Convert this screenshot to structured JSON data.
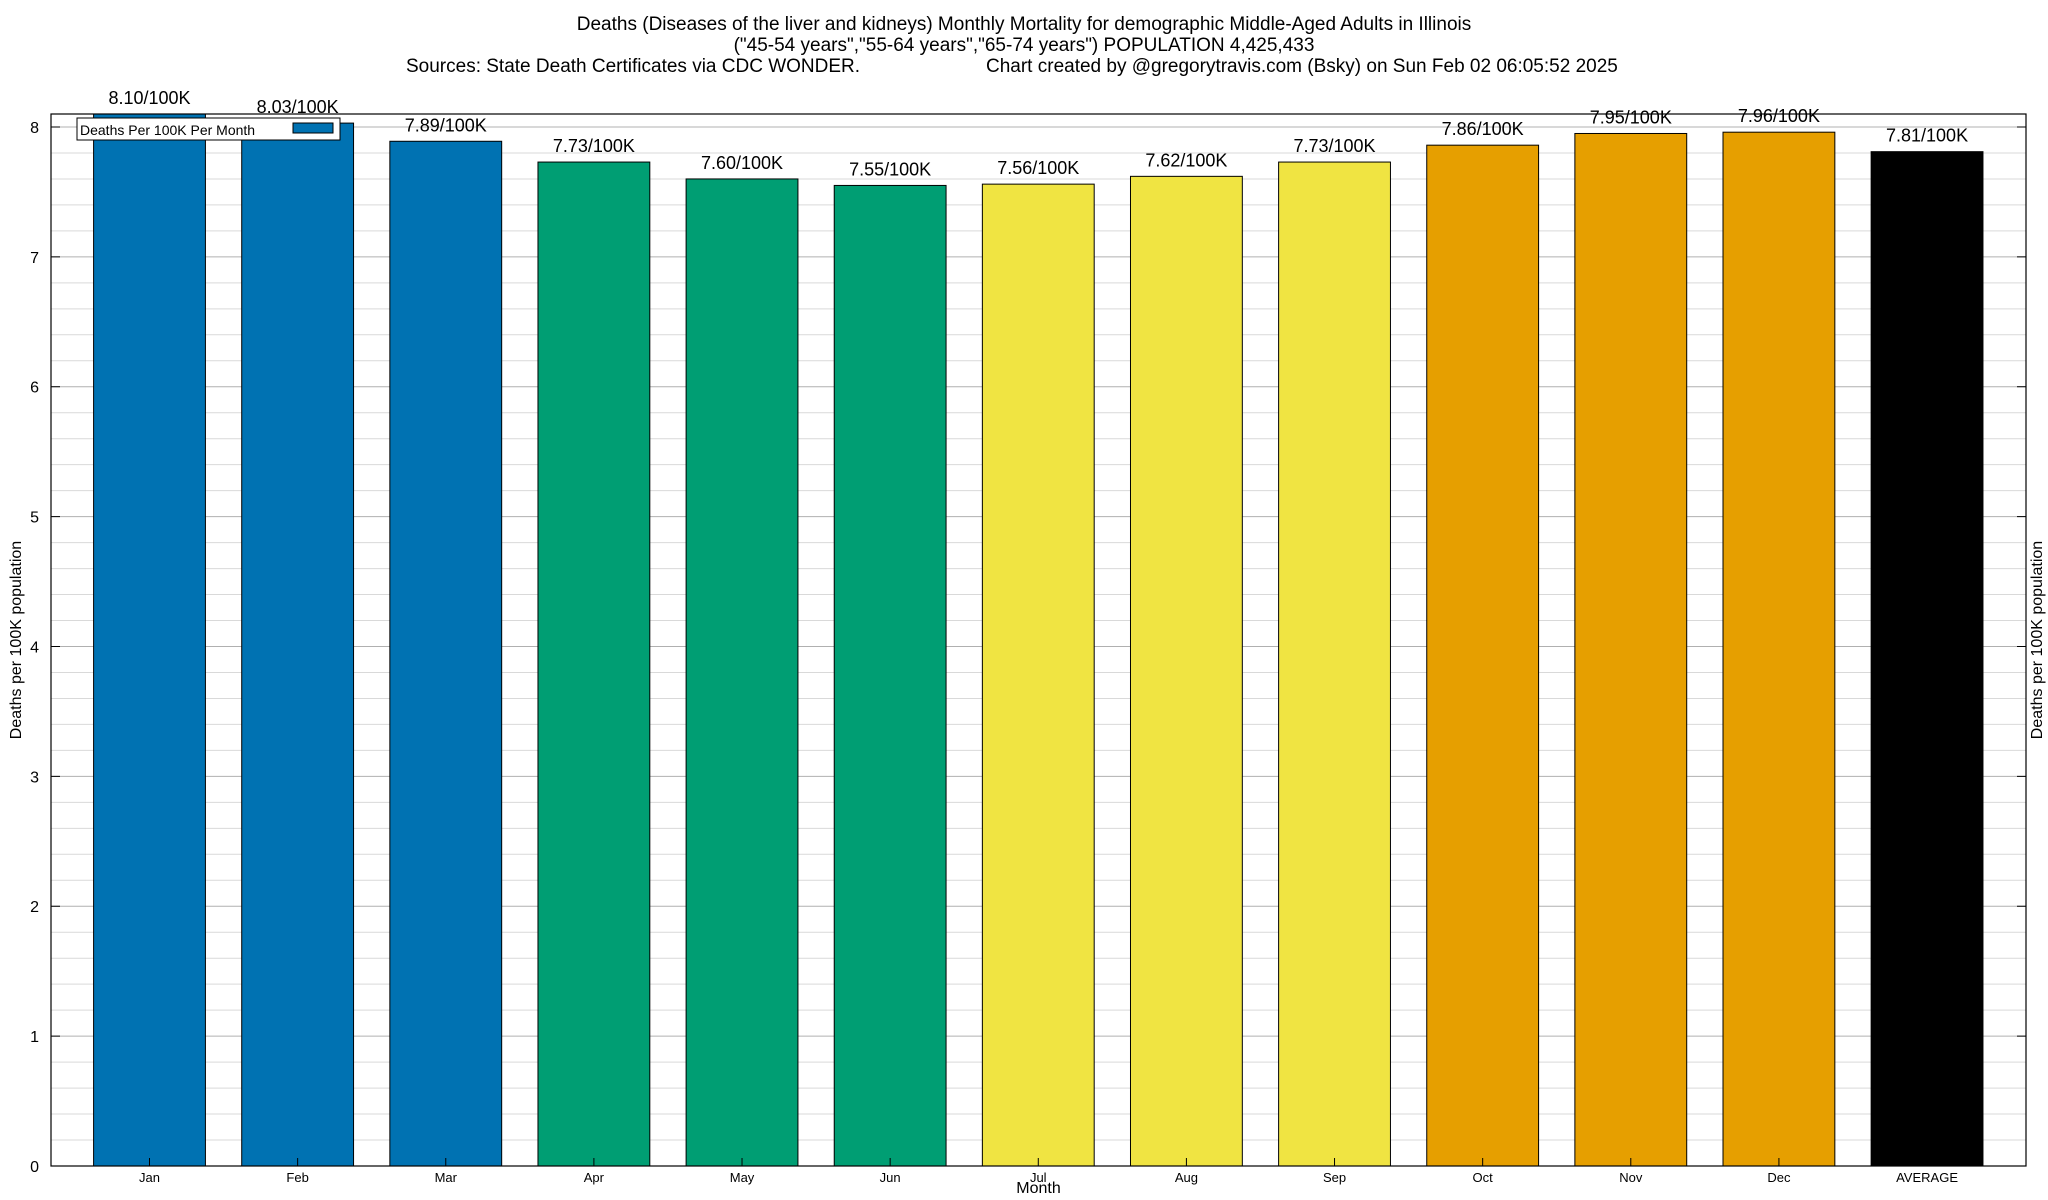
{
  "chart_data": {
    "type": "bar",
    "title": "Deaths (Diseases of the liver and kidneys) Monthly Mortality for demographic Middle-Aged Adults in Illinois",
    "subtitle": "(\"45-54 years\",\"55-64 years\",\"65-74 years\") POPULATION 4,425,433",
    "sources": "Sources: State Death Certificates via CDC WONDER.",
    "credit": "Chart created by @gregorytravis.com (Bsky) on Sun Feb 02 06:05:52 2025",
    "xlabel": "Month",
    "ylabel": "Deaths per 100K population",
    "ylabel_right": "Deaths per 100K population",
    "ylim": [
      0,
      8.1
    ],
    "yticks": [
      "0",
      "1",
      "2",
      "3",
      "4",
      "5",
      "6",
      "7",
      "8"
    ],
    "grid": true,
    "legend": {
      "label": "Deaths Per 100K Per Month",
      "position": "top-left",
      "color": "#0072b2"
    },
    "categories": [
      "Jan",
      "Feb",
      "Mar",
      "Apr",
      "May",
      "Jun",
      "Jul",
      "Aug",
      "Sep",
      "Oct",
      "Nov",
      "Dec",
      "AVERAGE"
    ],
    "values": [
      8.1,
      8.03,
      7.89,
      7.73,
      7.6,
      7.55,
      7.56,
      7.62,
      7.73,
      7.86,
      7.95,
      7.96,
      7.81
    ],
    "data_labels": [
      "8.10/100K",
      "8.03/100K",
      "7.89/100K",
      "7.73/100K",
      "7.60/100K",
      "7.55/100K",
      "7.56/100K",
      "7.62/100K",
      "7.73/100K",
      "7.86/100K",
      "7.95/100K",
      "7.96/100K",
      "7.81/100K"
    ],
    "colors": [
      "#0072b2",
      "#0072b2",
      "#0072b2",
      "#009e73",
      "#009e73",
      "#009e73",
      "#f0e442",
      "#f0e442",
      "#f0e442",
      "#e69f00",
      "#e69f00",
      "#e69f00",
      "#000000"
    ]
  }
}
